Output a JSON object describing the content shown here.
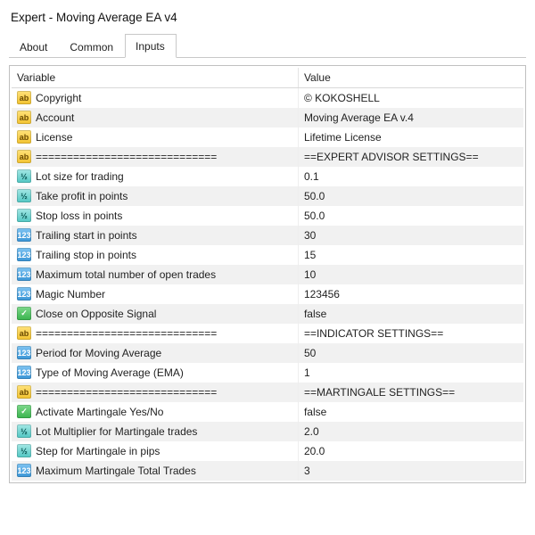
{
  "window_title": "Expert - Moving Average EA v4",
  "tabs": {
    "about": "About",
    "common": "Common",
    "inputs": "Inputs"
  },
  "active_tab": "inputs",
  "columns": {
    "variable": "Variable",
    "value": "Value"
  },
  "type_glyphs": {
    "string": "ab",
    "double": "½",
    "int": "123",
    "bool": "✓"
  },
  "colors": {
    "window_bg": "#ffffff",
    "border": "#c0c0c0",
    "tab_border": "#c8c8c8",
    "row_alt": "#f1f1f1",
    "text": "#222222",
    "icon_str_top": "#ffe27a",
    "icon_str_bot": "#f2c230",
    "icon_str_txt": "#6a4a00",
    "icon_dbl_top": "#a4e7e5",
    "icon_dbl_bot": "#52c7c3",
    "icon_dbl_txt": "#04514e",
    "icon_int_top": "#7fc4f2",
    "icon_int_bot": "#3a95d6",
    "icon_int_txt": "#ffffff",
    "icon_bool_top": "#7fd98c",
    "icon_bool_bot": "#39b34d",
    "icon_bool_txt": "#ffffff"
  },
  "rows": [
    {
      "type": "string",
      "variable": "Copyright",
      "value": "© KOKOSHELL"
    },
    {
      "type": "string",
      "variable": "Account",
      "value": "Moving Average EA v.4"
    },
    {
      "type": "string",
      "variable": "License",
      "value": "Lifetime License"
    },
    {
      "type": "string",
      "variable": "=============================",
      "value": "==EXPERT ADVISOR SETTINGS=="
    },
    {
      "type": "double",
      "variable": "Lot size for trading",
      "value": "0.1"
    },
    {
      "type": "double",
      "variable": "Take profit in points",
      "value": "50.0"
    },
    {
      "type": "double",
      "variable": "Stop loss in points",
      "value": "50.0"
    },
    {
      "type": "int",
      "variable": "Trailing start in points",
      "value": "30"
    },
    {
      "type": "int",
      "variable": "Trailing stop in points",
      "value": "15"
    },
    {
      "type": "int",
      "variable": "Maximum total number of open trades",
      "value": "10"
    },
    {
      "type": "int",
      "variable": "Magic Number",
      "value": "123456"
    },
    {
      "type": "bool",
      "variable": "Close on Opposite Signal",
      "value": "false"
    },
    {
      "type": "string",
      "variable": "=============================",
      "value": "==INDICATOR SETTINGS=="
    },
    {
      "type": "int",
      "variable": "Period for Moving Average",
      "value": "50"
    },
    {
      "type": "int",
      "variable": "Type of Moving Average (EMA)",
      "value": "1"
    },
    {
      "type": "string",
      "variable": "=============================",
      "value": "==MARTINGALE SETTINGS=="
    },
    {
      "type": "bool",
      "variable": "Activate Martingale Yes/No",
      "value": "false"
    },
    {
      "type": "double",
      "variable": "Lot Multiplier for Martingale trades",
      "value": "2.0"
    },
    {
      "type": "double",
      "variable": "Step for Martingale in pips",
      "value": "20.0"
    },
    {
      "type": "int",
      "variable": "Maximum Martingale Total Trades",
      "value": "3"
    }
  ]
}
